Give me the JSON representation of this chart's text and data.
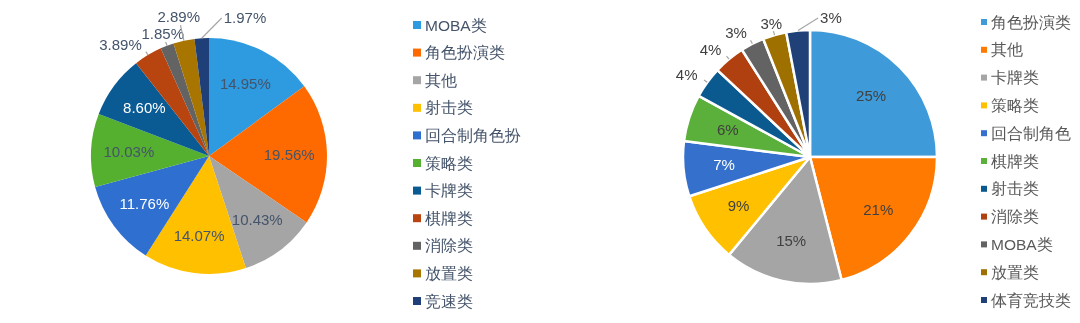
{
  "chart_data": [
    {
      "type": "pie",
      "categories": [
        "MOBA类",
        "角色扮演类",
        "其他",
        "射击类",
        "回合制角色扮",
        "策略类",
        "卡牌类",
        "棋牌类",
        "消除类",
        "放置类",
        "竞速类"
      ],
      "values": [
        14.95,
        19.56,
        10.43,
        14.07,
        11.76,
        10.03,
        8.6,
        3.89,
        1.85,
        2.89,
        1.97
      ],
      "colors": [
        "#2e9ae0",
        "#ff6a00",
        "#a5a5a5",
        "#ffc000",
        "#2e6fd0",
        "#55b030",
        "#0a5a94",
        "#b84510",
        "#636363",
        "#a87500",
        "#1f3f78"
      ],
      "value_labels": [
        "14.95%",
        "19.56%",
        "10.43%",
        "14.07%",
        "11.76%",
        "10.03%",
        "8.60%",
        "3.89%",
        "1.85%",
        "2.89%",
        "1.97%"
      ],
      "legend": "right"
    },
    {
      "type": "pie",
      "categories": [
        "角色扮演类",
        "其他",
        "卡牌类",
        "策略类",
        "回合制角色",
        "棋牌类",
        "射击类",
        "消除类",
        "MOBA类",
        "放置类",
        "体育竞技类"
      ],
      "values": [
        25,
        21,
        15,
        9,
        7,
        6,
        4,
        4,
        3,
        3,
        3
      ],
      "colors": [
        "#3e9ad9",
        "#ff7a00",
        "#a5a5a5",
        "#ffc000",
        "#3570cc",
        "#5ab03a",
        "#0a5a90",
        "#b04010",
        "#636363",
        "#9e7000",
        "#1f4178"
      ],
      "value_labels": [
        "25%",
        "21%",
        "15%",
        "9%",
        "7%",
        "6%",
        "4%",
        "4%",
        "3%",
        "3%",
        "3%"
      ],
      "legend": "right"
    }
  ]
}
